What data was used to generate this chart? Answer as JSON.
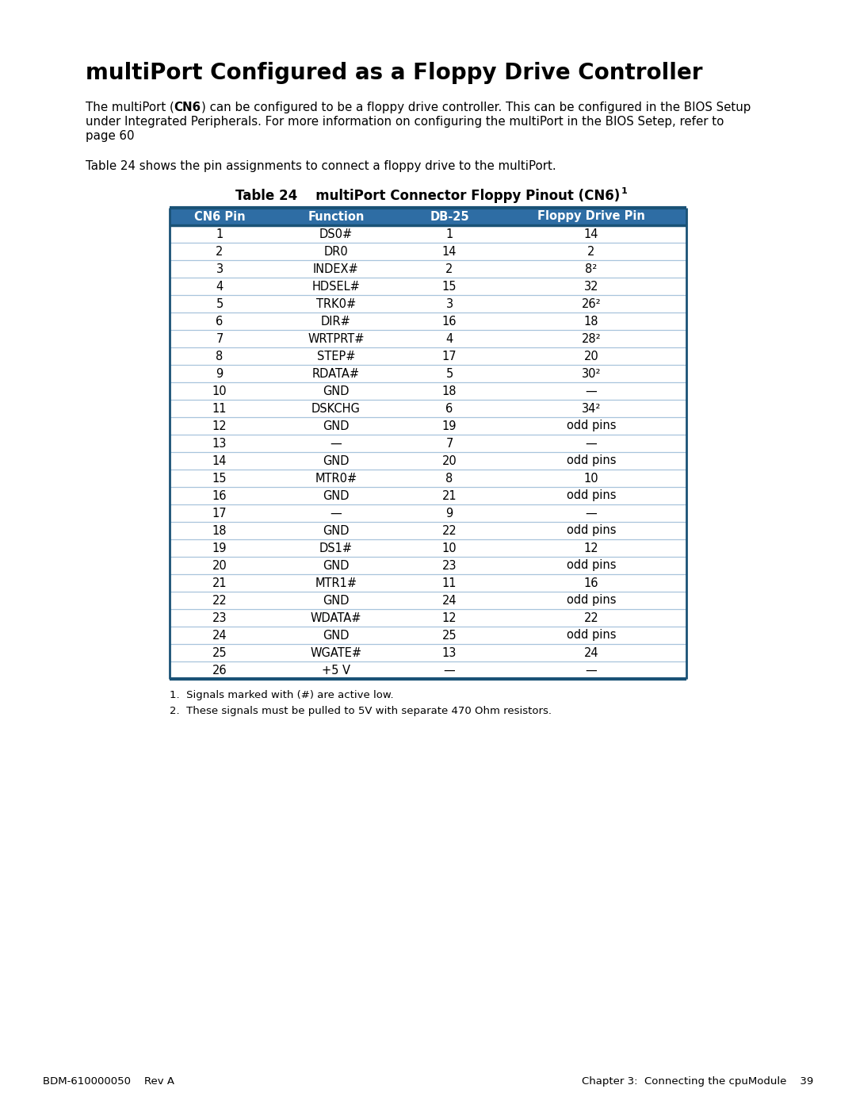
{
  "title": "multiPort Configured as a Floppy Drive Controller",
  "para1_line1_pre": "The multiPort (",
  "para1_line1_bold": "CN6",
  "para1_line1_post": ") can be configured to be a floppy drive controller. This can be configured in the BIOS Setup",
  "para1_line2": "under Integrated Peripherals. For more information on configuring the multiPort in the BIOS Setep, refer to",
  "para1_line3": "page 60",
  "para2": "Table 24 shows the pin assignments to connect a floppy drive to the multiPort.",
  "table_title_pre": "Table 24    multiPort Connector Floppy Pinout (CN6)",
  "table_title_sup": "1",
  "col_headers": [
    "CN6 Pin",
    "Function",
    "DB-25",
    "Floppy Drive Pin"
  ],
  "rows": [
    [
      "1",
      "DS0#",
      "1",
      "14"
    ],
    [
      "2",
      "DR0",
      "14",
      "2"
    ],
    [
      "3",
      "INDEX#",
      "2",
      "8²"
    ],
    [
      "4",
      "HDSEL#",
      "15",
      "32"
    ],
    [
      "5",
      "TRK0#",
      "3",
      "26²"
    ],
    [
      "6",
      "DIR#",
      "16",
      "18"
    ],
    [
      "7",
      "WRTPRT#",
      "4",
      "28²"
    ],
    [
      "8",
      "STEP#",
      "17",
      "20"
    ],
    [
      "9",
      "RDATA#",
      "5",
      "30²"
    ],
    [
      "10",
      "GND",
      "18",
      "—"
    ],
    [
      "11",
      "DSKCHG",
      "6",
      "34²"
    ],
    [
      "12",
      "GND",
      "19",
      "odd pins"
    ],
    [
      "13",
      "—",
      "7",
      "—"
    ],
    [
      "14",
      "GND",
      "20",
      "odd pins"
    ],
    [
      "15",
      "MTR0#",
      "8",
      "10"
    ],
    [
      "16",
      "GND",
      "21",
      "odd pins"
    ],
    [
      "17",
      "—",
      "9",
      "—"
    ],
    [
      "18",
      "GND",
      "22",
      "odd pins"
    ],
    [
      "19",
      "DS1#",
      "10",
      "12"
    ],
    [
      "20",
      "GND",
      "23",
      "odd pins"
    ],
    [
      "21",
      "MTR1#",
      "11",
      "16"
    ],
    [
      "22",
      "GND",
      "24",
      "odd pins"
    ],
    [
      "23",
      "WDATA#",
      "12",
      "22"
    ],
    [
      "24",
      "GND",
      "25",
      "odd pins"
    ],
    [
      "25",
      "WGATE#",
      "13",
      "24"
    ],
    [
      "26",
      "+5 V",
      "—",
      "—"
    ]
  ],
  "footnote1": "1.  Signals marked with (#) are active low.",
  "footnote2": "2.  These signals must be pulled to 5V with separate 470 Ohm resistors.",
  "footer_left": "BDM-610000050    Rev A",
  "footer_right": "Chapter 3:  Connecting the cpuModule    39",
  "header_bg_color": "#2E6DA4",
  "header_text_color": "#FFFFFF",
  "row_line_color": "#A8C4DC",
  "outer_line_color": "#1A5276",
  "bg_color": "#FFFFFF"
}
